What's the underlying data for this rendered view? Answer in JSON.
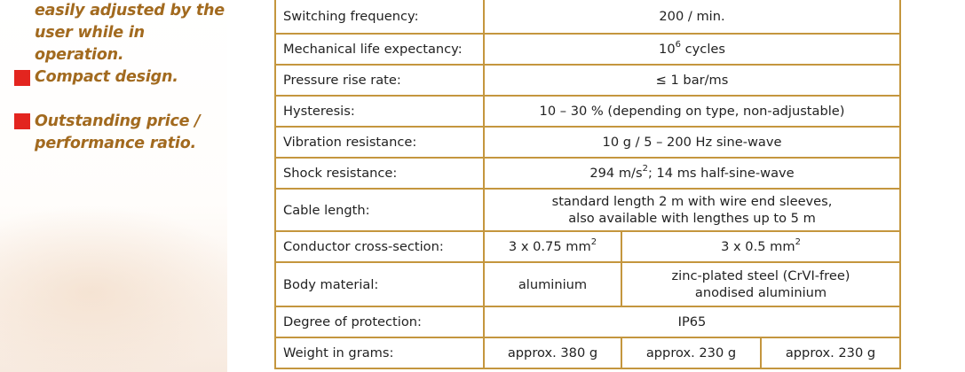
{
  "features": {
    "line1": "easily adjusted by the",
    "line2": "user while in operation.",
    "compact": "Compact design.",
    "price_line1": "Outstanding price /",
    "price_line2": "performance ratio."
  },
  "colors": {
    "accent_text": "#a26a1f",
    "bullet": "#e3251f",
    "table_border": "#c4963e"
  },
  "specs": {
    "switching_frequency": {
      "label": "Switching frequency:",
      "value": "200 / min."
    },
    "mechanical_life": {
      "label": "Mechanical life expectancy:",
      "value_base": "10",
      "value_exp": "6",
      "value_unit": " cycles"
    },
    "pressure_rise": {
      "label": "Pressure rise rate:",
      "value": "≤ 1 bar/ms"
    },
    "hysteresis": {
      "label": "Hysteresis:",
      "value": "10 – 30 % (depending on type, non-adjustable)"
    },
    "vibration": {
      "label": "Vibration resistance:",
      "value": "10 g / 5 – 200 Hz sine-wave"
    },
    "shock": {
      "label": "Shock resistance:",
      "value_pre": "294 m/s",
      "value_exp": "2",
      "value_post": "; 14 ms half-sine-wave"
    },
    "cable_length": {
      "label": "Cable length:",
      "value_line1": "standard length 2 m with wire end sleeves,",
      "value_line2": "also available with lengthes up to 5 m"
    },
    "conductor": {
      "label": "Conductor cross-section:",
      "value_a_pre": "3 x 0.75 mm",
      "value_a_exp": "2",
      "value_b_pre": "3 x 0.5 mm",
      "value_b_exp": "2"
    },
    "body_material": {
      "label": "Body material:",
      "value_a": "aluminium",
      "value_b_line1": "zinc-plated steel (CrVI-free)",
      "value_b_line2": "anodised aluminium"
    },
    "protection": {
      "label": "Degree of protection:",
      "value": "IP65"
    },
    "weight": {
      "label": "Weight in grams:",
      "value_a": "approx. 380 g",
      "value_b": "approx. 230 g",
      "value_c": "approx. 230 g"
    }
  }
}
